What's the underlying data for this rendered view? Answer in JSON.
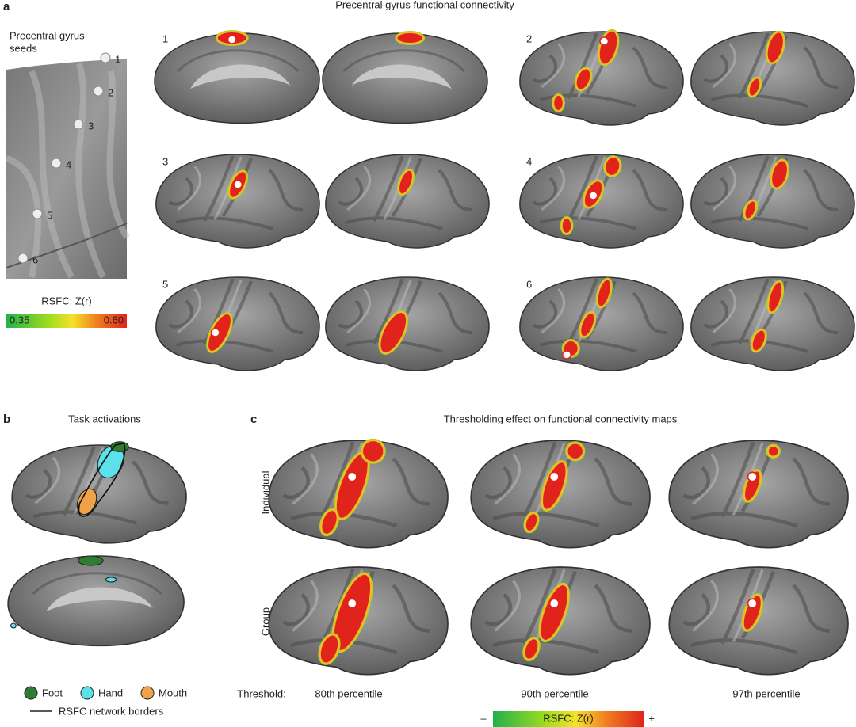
{
  "panel_a": {
    "label": "a",
    "title": "Precentral gyrus functional connectivity",
    "seeds_label": [
      "Precentral gyrus",
      "seeds"
    ],
    "seed_numbers": [
      "1",
      "2",
      "3",
      "4",
      "5",
      "6"
    ],
    "map_numbers": [
      "1",
      "2",
      "3",
      "4",
      "5",
      "6"
    ],
    "colorbar": {
      "label": "RSFC: Z(r)",
      "min": "0.35",
      "max": "0.60"
    }
  },
  "panel_b": {
    "label": "b",
    "title": "Task activations",
    "legend": [
      "Foot",
      "Hand",
      "Mouth"
    ],
    "border_legend": "RSFC network borders"
  },
  "panel_c": {
    "label": "c",
    "title": "Thresholding effect on functional connectivity maps",
    "rows": [
      "Individual",
      "Group"
    ],
    "threshold_label": "Threshold:",
    "thresholds": [
      "80th percentile",
      "90th percentile",
      "97th percentile"
    ],
    "colorbar": {
      "minus": "–",
      "label": "RSFC: Z(r)",
      "plus": "+"
    }
  }
}
